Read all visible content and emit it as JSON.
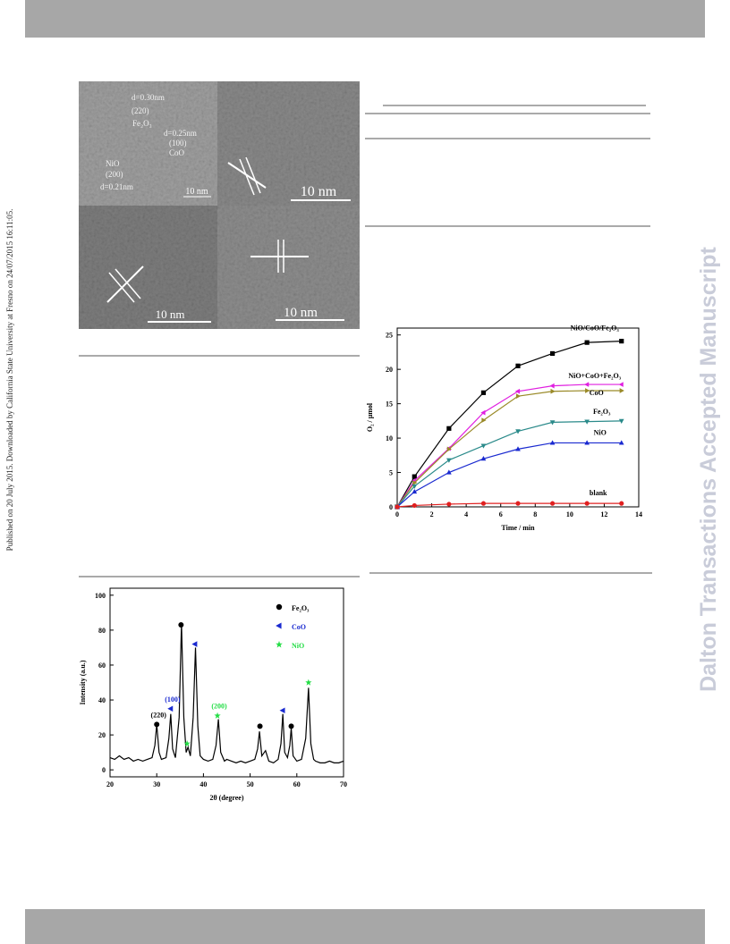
{
  "side_text": "Published on 20 July 2015. Downloaded by California State University at Fresno on 24/07/2015 16:11:05.",
  "watermark": "Dalton Transactions Accepted Manuscript",
  "tem": {
    "labels": [
      "d=0.30nm",
      "(220)",
      "Fe₂O₃",
      "d=0.25nm",
      "(100)",
      "CoO",
      "NiO",
      "(200)",
      "d=0.21nm"
    ],
    "scale_bars": [
      "10 nm",
      "10 nm",
      "10 nm",
      "10 nm"
    ]
  },
  "chart_data": [
    {
      "type": "line",
      "xlabel": "Time / min",
      "ylabel": "O₂ / μmol",
      "x": [
        0,
        1,
        3,
        5,
        7,
        9,
        11,
        13
      ],
      "xlim": [
        0,
        14
      ],
      "ylim": [
        0,
        26
      ],
      "xticks": [
        0,
        2,
        4,
        6,
        8,
        10,
        12,
        14
      ],
      "yticks": [
        0,
        5,
        10,
        15,
        20,
        25
      ],
      "series": [
        {
          "name": "NiO/CoO/Fe₂O₃",
          "color": "#000000",
          "marker": "square",
          "values": [
            0,
            4.4,
            11.4,
            16.6,
            20.5,
            22.3,
            23.9,
            24.1
          ]
        },
        {
          "name": "NiO+CoO+Fe₂O₃",
          "color": "#e020e0",
          "marker": "triangle-left",
          "values": [
            0,
            3.8,
            8.5,
            13.7,
            16.8,
            17.6,
            17.8,
            17.8
          ]
        },
        {
          "name": "CoO",
          "color": "#9a8a28",
          "marker": "triangle-right",
          "values": [
            0,
            3.5,
            8.4,
            12.6,
            16.1,
            16.8,
            16.9,
            16.9
          ]
        },
        {
          "name": "Fe₂O₃",
          "color": "#2a8a8a",
          "marker": "triangle-down",
          "values": [
            0,
            3.0,
            6.8,
            8.9,
            11.0,
            12.3,
            12.4,
            12.5
          ]
        },
        {
          "name": "NiO",
          "color": "#1a2ad0",
          "marker": "triangle-up",
          "values": [
            0,
            2.2,
            5.0,
            7.0,
            8.4,
            9.3,
            9.3,
            9.3
          ]
        },
        {
          "name": "blank",
          "color": "#e02020",
          "marker": "circle",
          "values": [
            0,
            0.2,
            0.4,
            0.5,
            0.5,
            0.5,
            0.5,
            0.5
          ]
        }
      ]
    },
    {
      "type": "line",
      "xlabel": "2θ (degree)",
      "ylabel": "Intensity (a.u.)",
      "xlim": [
        20,
        70
      ],
      "ylim": [
        -4,
        104
      ],
      "xticks": [
        20,
        30,
        40,
        50,
        60,
        70
      ],
      "yticks": [
        0,
        20,
        40,
        60,
        80,
        100
      ],
      "series": [
        {
          "color": "#000000",
          "x": [
            20,
            21,
            22,
            23,
            24,
            25,
            26,
            27,
            28,
            29,
            29.6,
            30,
            30.5,
            31,
            32,
            32.6,
            33,
            33.4,
            34,
            34.8,
            35.3,
            35.8,
            36.3,
            36.7,
            37.2,
            37.8,
            38.3,
            38.8,
            39.3,
            40,
            41,
            42,
            42.7,
            43.2,
            43.7,
            44.5,
            45,
            46,
            47,
            48,
            49,
            50,
            51,
            51.6,
            52,
            52.5,
            53.3,
            54,
            55,
            56,
            56.6,
            57,
            57.4,
            58,
            58.5,
            58.8,
            59.2,
            60,
            61,
            61.9,
            62.5,
            63,
            63.6,
            64,
            65,
            66,
            67,
            68,
            69,
            70
          ],
          "values": [
            7,
            6,
            8,
            6,
            7,
            5,
            6,
            5,
            6,
            7,
            14,
            26,
            10,
            6,
            7,
            18,
            32,
            12,
            7,
            30,
            84,
            30,
            10,
            13,
            8,
            30,
            70,
            25,
            8,
            6,
            5,
            6,
            14,
            29,
            10,
            5,
            6,
            5,
            4,
            5,
            4,
            5,
            6,
            12,
            22,
            8,
            11,
            5,
            4,
            6,
            15,
            32,
            10,
            7,
            14,
            24,
            8,
            5,
            6,
            18,
            47,
            15,
            6,
            5,
            4,
            4,
            5,
            4,
            4,
            5
          ]
        }
      ],
      "markers": [
        {
          "name": "Fe₂O₃",
          "color": "#000000",
          "marker": "circle",
          "x": [
            30,
            35.2,
            52.1,
            58.8
          ],
          "y": [
            26,
            83,
            25,
            25
          ],
          "labels": [
            "(220)",
            null,
            null,
            null
          ]
        },
        {
          "name": "CoO",
          "color": "#1a2ad0",
          "marker": "triangle-left",
          "x": [
            33,
            38.2,
            57
          ],
          "y": [
            35,
            72,
            34
          ],
          "labels": [
            "(100)",
            null,
            null
          ]
        },
        {
          "name": "NiO",
          "color": "#22dd44",
          "marker": "star",
          "x": [
            36.5,
            43,
            62.5
          ],
          "y": [
            15,
            31,
            50
          ],
          "labels": [
            null,
            "(200)",
            null
          ]
        }
      ]
    }
  ]
}
